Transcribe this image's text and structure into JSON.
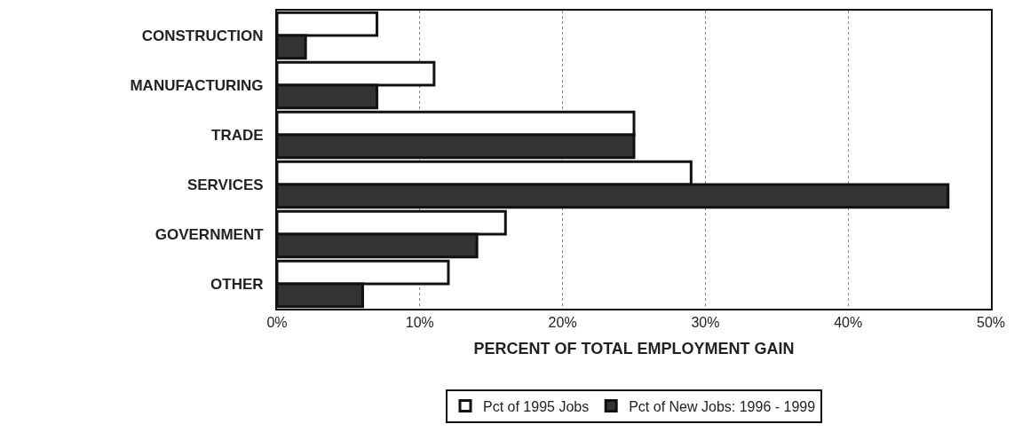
{
  "chart_data": {
    "type": "bar",
    "orientation": "horizontal",
    "categories": [
      "CONSTRUCTION",
      "MANUFACTURING",
      "TRADE",
      "SERVICES",
      "GOVERNMENT",
      "OTHER"
    ],
    "series": [
      {
        "name": "Pct of 1995 Jobs",
        "color": "#ffffff",
        "values": [
          7,
          11,
          25,
          29,
          16,
          12
        ]
      },
      {
        "name": "Pct of New Jobs: 1996 - 1999",
        "color": "#333333",
        "values": [
          2,
          7,
          25,
          47,
          14,
          6
        ]
      }
    ],
    "xlabel": "PERCENT OF TOTAL EMPLOYMENT GAIN",
    "xlim": [
      0,
      50
    ],
    "xticks": [
      {
        "value": 0,
        "label": "0%"
      },
      {
        "value": 10,
        "label": "10%"
      },
      {
        "value": 20,
        "label": "20%"
      },
      {
        "value": 30,
        "label": "30%"
      },
      {
        "value": 40,
        "label": "40%"
      },
      {
        "value": 50,
        "label": "50%"
      }
    ],
    "grid": "x",
    "legend": "bottom"
  }
}
